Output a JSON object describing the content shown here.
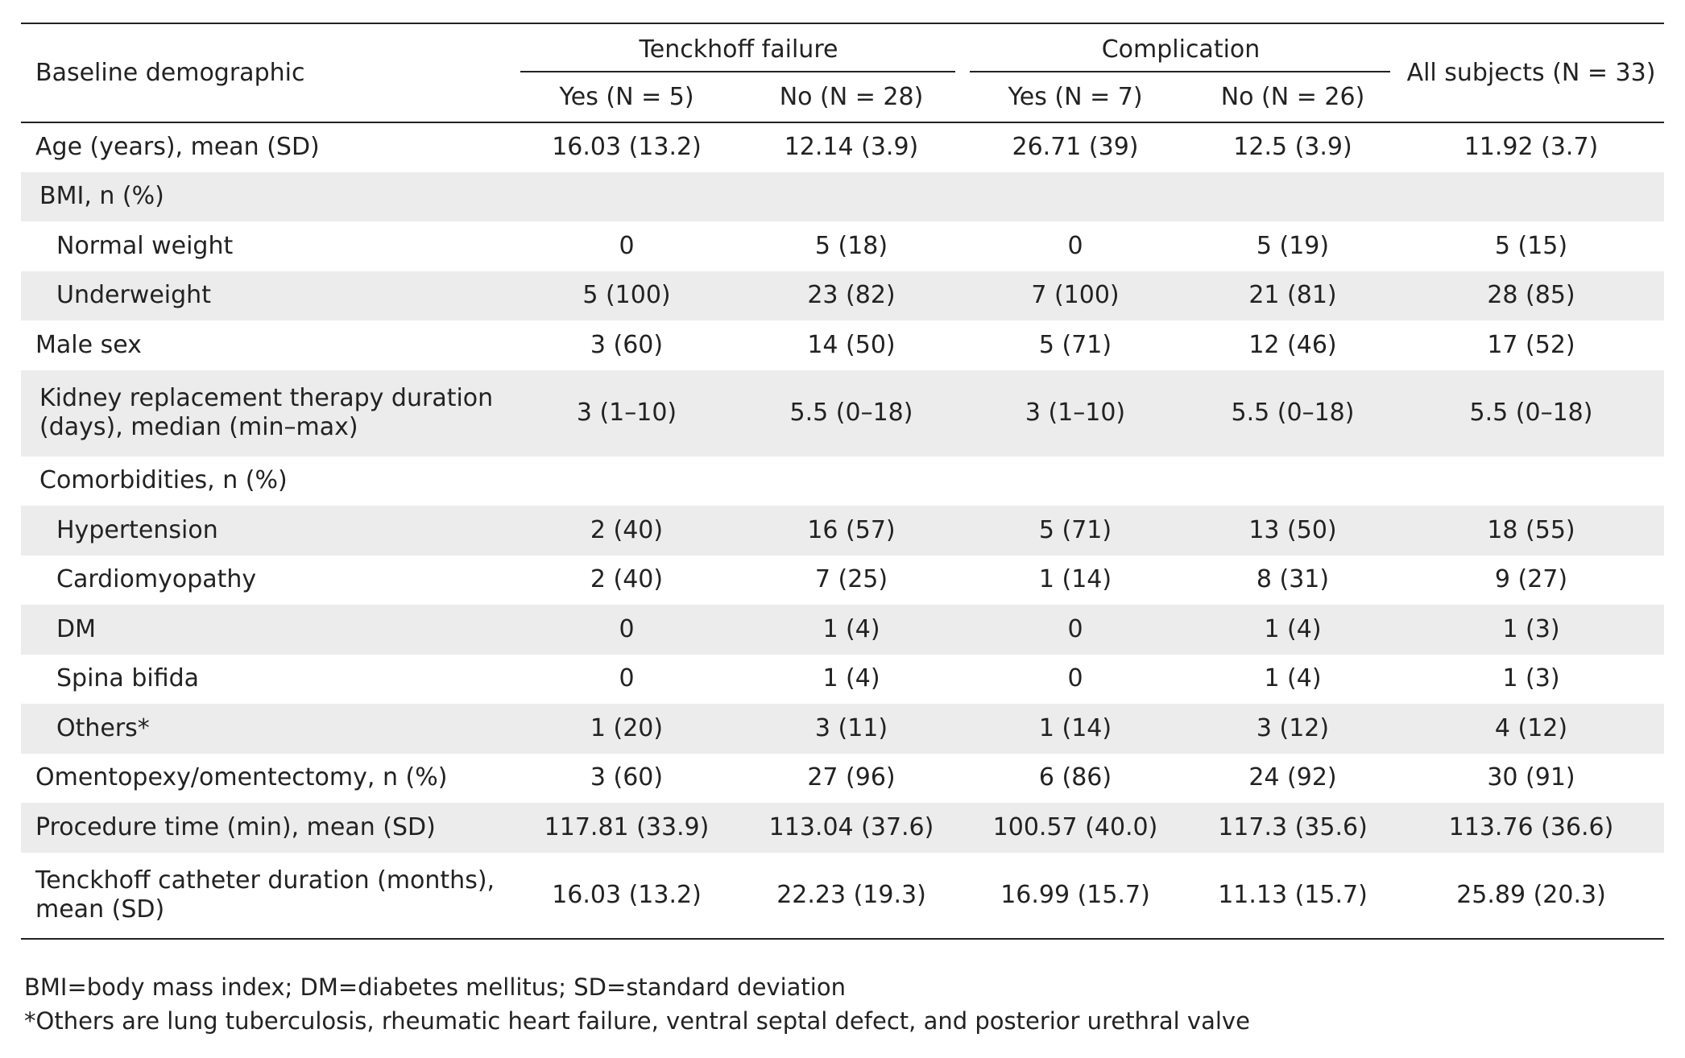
{
  "table": {
    "header": {
      "row_label": "Baseline demographic",
      "groups": [
        {
          "label": "Tenckhoff failure",
          "subcols": [
            "Yes (N = 5)",
            "No (N = 28)"
          ]
        },
        {
          "label": "Complication",
          "subcols": [
            "Yes (N = 7)",
            "No (N = 26)"
          ]
        }
      ],
      "all_subjects": "All subjects (N = 33)"
    },
    "rows": [
      {
        "label": "Age (years), mean (SD)",
        "values": [
          "16.03 (13.2)",
          "12.14 (3.9)",
          "26.71 (39)",
          "12.5 (3.9)",
          "11.92 (3.7)"
        ]
      },
      {
        "label": "BMI, n (%)",
        "values": [
          "",
          "",
          "",
          "",
          ""
        ]
      },
      {
        "label": "Normal weight",
        "values": [
          "0",
          "5 (18)",
          "0",
          "5 (19)",
          "5 (15)"
        ]
      },
      {
        "label": "Underweight",
        "values": [
          "5 (100)",
          "23 (82)",
          "7 (100)",
          "21 (81)",
          "28 (85)"
        ]
      },
      {
        "label": "Male sex",
        "values": [
          "3 (60)",
          "14 (50)",
          "5 (71)",
          "12 (46)",
          "17 (52)"
        ]
      },
      {
        "label_lines": [
          "Kidney replacement therapy duration",
          "(days), median (min–max)"
        ],
        "values": [
          "3 (1–10)",
          "5.5 (0–18)",
          "3 (1–10)",
          "5.5 (0–18)",
          "5.5 (0–18)"
        ]
      },
      {
        "label": "Comorbidities, n (%)",
        "values": [
          "",
          "",
          "",
          "",
          ""
        ]
      },
      {
        "label": "Hypertension",
        "values": [
          "2 (40)",
          "16 (57)",
          "5 (71)",
          "13 (50)",
          "18 (55)"
        ]
      },
      {
        "label": "Cardiomyopathy",
        "values": [
          "2 (40)",
          "7 (25)",
          "1 (14)",
          "8 (31)",
          "9 (27)"
        ]
      },
      {
        "label": "DM",
        "values": [
          "0",
          "1 (4)",
          "0",
          "1 (4)",
          "1 (3)"
        ]
      },
      {
        "label": "Spina bifida",
        "values": [
          "0",
          "1 (4)",
          "0",
          "1 (4)",
          "1 (3)"
        ]
      },
      {
        "label": "Others*",
        "values": [
          "1 (20)",
          "3 (11)",
          "1 (14)",
          "3 (12)",
          "4 (12)"
        ]
      },
      {
        "label": "Omentopexy/omentectomy, n (%)",
        "values": [
          "3 (60)",
          "27 (96)",
          "6 (86)",
          "24 (92)",
          "30 (91)"
        ]
      },
      {
        "label": "Procedure time (min), mean (SD)",
        "values": [
          "117.81 (33.9)",
          "113.04 (37.6)",
          "100.57 (40.0)",
          "117.3 (35.6)",
          "113.76 (36.6)"
        ]
      },
      {
        "label_lines": [
          "Tenckhoff catheter duration (months),",
          "mean (SD)"
        ],
        "values": [
          "16.03 (13.2)",
          "22.23 (19.3)",
          "16.99 (15.7)",
          "11.13 (15.7)",
          "25.89 (20.3)"
        ]
      }
    ]
  },
  "footnotes": [
    "BMI=body mass index; DM=diabetes mellitus; SD=standard deviation",
    "*Others are lung tuberculosis, rheumatic heart failure, ventral septal defect, and posterior urethral valve"
  ],
  "colors": {
    "shade": "#ececec",
    "rule": "#222222"
  }
}
